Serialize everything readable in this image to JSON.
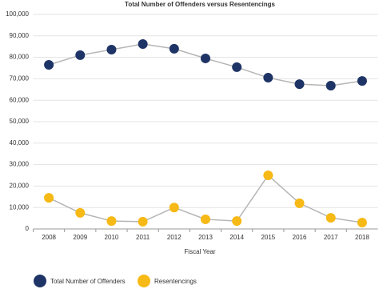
{
  "chart_data": {
    "type": "line",
    "title": "Total Number of Offenders versus Resentencings",
    "x_label": "Fiscal Year",
    "categories": [
      "2008",
      "2009",
      "2010",
      "2011",
      "2012",
      "2013",
      "2014",
      "2015",
      "2016",
      "2017",
      "2018"
    ],
    "series": [
      {
        "name": "Total Number of Offenders",
        "color": "#1e3466",
        "values": [
          76500,
          81000,
          83600,
          86200,
          84000,
          79500,
          75400,
          70500,
          67500,
          66800,
          69000
        ]
      },
      {
        "name": "Resentencings",
        "color": "#f6b915",
        "values": [
          14500,
          7500,
          3700,
          3400,
          10000,
          4500,
          3700,
          25000,
          12000,
          5200,
          3000
        ]
      }
    ],
    "line_color": "#b5b5b5",
    "ylim": [
      0,
      100000
    ],
    "yticks": [
      0,
      {
        "value": 10000,
        "label": "10,000"
      },
      {
        "value": 20000,
        "label": "20,000"
      },
      {
        "value": 30000,
        "label": "30,000"
      },
      {
        "value": 40000,
        "label": "40,000"
      },
      {
        "value": 50000,
        "label": "50,000"
      },
      {
        "value": 60000,
        "label": "60,000"
      },
      {
        "value": 70000,
        "label": "70,000"
      },
      {
        "value": 80000,
        "label": "80,000"
      },
      {
        "value": 90000,
        "label": "90,000"
      },
      {
        "value": 100000,
        "label": "100,000"
      }
    ],
    "grid": true
  }
}
